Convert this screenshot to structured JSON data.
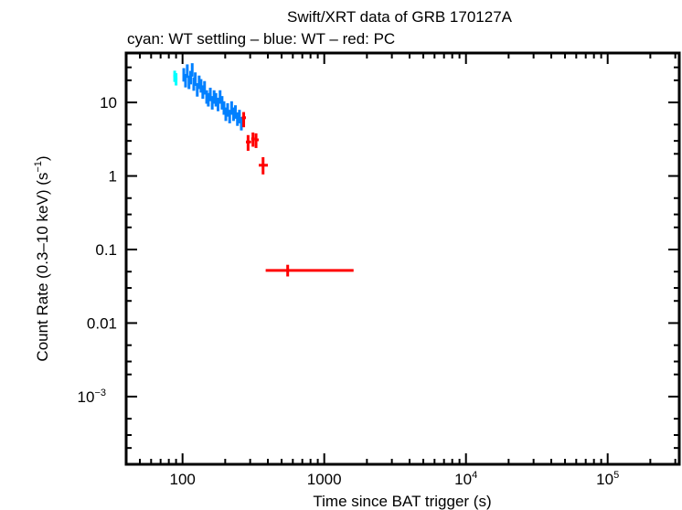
{
  "chart_data": {
    "type": "scatter",
    "title": "Swift/XRT data of GRB 170127A",
    "subtitle": "cyan: WT settling – blue: WT – red: PC",
    "xlabel": "Time since BAT trigger (s)",
    "ylabel": "Count Rate (0.3–10 keV) (s",
    "ylabel_sup": "−1",
    "ylabel_end": ")",
    "xscale": "log",
    "yscale": "log",
    "xlim": [
      40,
      320000
    ],
    "ylim": [
      0.00012,
      47
    ],
    "grid": false,
    "x_ticks": [
      {
        "value": 100,
        "label": "100",
        "sup": ""
      },
      {
        "value": 1000,
        "label": "1000",
        "sup": ""
      },
      {
        "value": 10000,
        "label": "10",
        "sup": "4"
      },
      {
        "value": 100000,
        "label": "10",
        "sup": "5"
      }
    ],
    "y_ticks": [
      {
        "value": 10,
        "label": "10",
        "sup": ""
      },
      {
        "value": 1,
        "label": "1",
        "sup": ""
      },
      {
        "value": 0.1,
        "label": "0.1",
        "sup": ""
      },
      {
        "value": 0.01,
        "label": "0.01",
        "sup": ""
      },
      {
        "value": 0.001,
        "label": "10",
        "sup": "−3"
      }
    ],
    "series": [
      {
        "name": "WT settling",
        "color": "#00ffff",
        "points": [
          {
            "t": 88,
            "terr": [
              86,
              90
            ],
            "rate": 23,
            "rerr": [
              19,
              27
            ]
          },
          {
            "t": 90,
            "terr": [
              89,
              92
            ],
            "rate": 21,
            "rerr": [
              17,
              25
            ]
          }
        ]
      },
      {
        "name": "WT",
        "color": "#0080ff",
        "points": [
          {
            "t": 102,
            "rate": 24
          },
          {
            "t": 105,
            "rate": 20
          },
          {
            "t": 108,
            "rate": 27
          },
          {
            "t": 111,
            "rate": 19
          },
          {
            "t": 114,
            "rate": 22
          },
          {
            "t": 117,
            "rate": 28
          },
          {
            "t": 120,
            "rate": 18
          },
          {
            "t": 123,
            "rate": 21
          },
          {
            "t": 127,
            "rate": 15
          },
          {
            "t": 131,
            "rate": 19
          },
          {
            "t": 135,
            "rate": 17
          },
          {
            "t": 139,
            "rate": 14
          },
          {
            "t": 143,
            "rate": 16
          },
          {
            "t": 148,
            "rate": 12
          },
          {
            "t": 152,
            "rate": 11
          },
          {
            "t": 157,
            "rate": 13
          },
          {
            "t": 162,
            "rate": 10
          },
          {
            "t": 167,
            "rate": 12
          },
          {
            "t": 172,
            "rate": 11
          },
          {
            "t": 178,
            "rate": 9.5
          },
          {
            "t": 184,
            "rate": 12
          },
          {
            "t": 190,
            "rate": 10
          },
          {
            "t": 196,
            "rate": 8.5
          },
          {
            "t": 202,
            "rate": 7
          },
          {
            "t": 208,
            "rate": 8
          },
          {
            "t": 215,
            "rate": 6.5
          },
          {
            "t": 222,
            "rate": 8.5
          },
          {
            "t": 229,
            "rate": 7
          },
          {
            "t": 236,
            "rate": 7.5
          },
          {
            "t": 244,
            "rate": 6
          },
          {
            "t": 252,
            "rate": 6.5
          },
          {
            "t": 260,
            "rate": 5.2
          }
        ]
      },
      {
        "name": "PC",
        "color": "#ff0000",
        "points": [
          {
            "t": 270,
            "terr": [
              262,
              280
            ],
            "rate": 6.2,
            "rerr": [
              4.6,
              7.4
            ]
          },
          {
            "t": 290,
            "terr": [
              280,
              305
            ],
            "rate": 2.9,
            "rerr": [
              2.2,
              3.6
            ]
          },
          {
            "t": 314,
            "terr": [
              305,
              322
            ],
            "rate": 3.2,
            "rerr": [
              2.5,
              3.9
            ]
          },
          {
            "t": 330,
            "terr": [
              322,
              345
            ],
            "rate": 3.1,
            "rerr": [
              2.4,
              3.8
            ]
          },
          {
            "t": 370,
            "terr": [
              345,
              400
            ],
            "rate": 1.4,
            "rerr": [
              1.05,
              1.8
            ]
          },
          {
            "t": 552,
            "terr": [
              386,
              1610
            ],
            "rate": 0.052,
            "rerr": [
              0.043,
              0.062
            ]
          }
        ]
      }
    ]
  }
}
